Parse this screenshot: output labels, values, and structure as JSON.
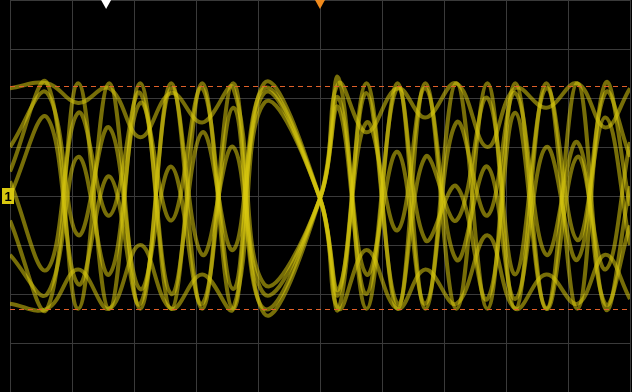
{
  "chart_data": {
    "type": "line",
    "channel_label": "1",
    "channel_offset": 0,
    "color": "#d9c80f",
    "xlim": [
      -5,
      5
    ],
    "ylim": [
      -4,
      4
    ],
    "xticks": [
      -5,
      -4,
      -3,
      -2,
      -1,
      0,
      1,
      2,
      3,
      4,
      5
    ],
    "yticks": [
      -4,
      -3,
      -2,
      -1,
      0,
      1,
      2,
      3,
      4
    ],
    "grid": true,
    "tick_labels": false,
    "cursors": [
      2.25,
      -2.3
    ],
    "top_markers": [
      -3.45,
      0
    ],
    "x": [
      -5,
      -4.4,
      -3.9,
      -3.4,
      -2.9,
      -2.4,
      -1.9,
      -1.4,
      -0.9,
      0,
      0.3,
      0.75,
      1.25,
      1.7,
      2.2,
      2.7,
      3.15,
      3.65,
      4.15,
      4.6,
      5
    ],
    "series": [
      {
        "values": [
          0.5,
          2.3,
          -2.3,
          2.3,
          -2.3,
          2.3,
          -2.3,
          2.3,
          -2.4,
          -0.05,
          2.4,
          -2.3,
          2.3,
          -2.3,
          2.3,
          -2.3,
          2.3,
          -2.3,
          2.3,
          -2.3,
          0.2
        ]
      },
      {
        "values": [
          -0.5,
          -2.3,
          2.3,
          -2.3,
          2.3,
          -2.3,
          2.3,
          -2.3,
          2.3,
          -0.05,
          -2.3,
          2.3,
          -2.3,
          2.3,
          -2.3,
          2.3,
          -2.3,
          2.3,
          -2.3,
          2.3,
          -0.2
        ]
      },
      {
        "values": [
          2.2,
          2.3,
          1.9,
          2.2,
          1.2,
          2.1,
          1.5,
          2.2,
          -1.8,
          -0.05,
          2.3,
          1.3,
          2.2,
          1.6,
          2.3,
          1.0,
          2.2,
          1.8,
          2.3,
          1.4,
          2.2
        ]
      },
      {
        "values": [
          -2.2,
          -2.3,
          -1.5,
          -2.3,
          -1.0,
          -2.3,
          -1.6,
          -2.3,
          1.9,
          -0.05,
          -2.3,
          -1.1,
          -2.3,
          -1.5,
          -2.2,
          -0.8,
          -2.3,
          -1.6,
          -2.2,
          -1.2,
          -2.1
        ]
      },
      {
        "values": [
          1.0,
          2.1,
          -0.8,
          1.4,
          -1.9,
          0.6,
          -2.2,
          1.8,
          -2.0,
          -0.05,
          2.0,
          -1.6,
          0.9,
          -2.2,
          1.5,
          -0.4,
          2.1,
          -1.2,
          1.1,
          -2.2,
          -0.6
        ]
      },
      {
        "values": [
          -1.2,
          -2.0,
          0.8,
          -1.6,
          1.9,
          -0.5,
          2.2,
          -1.9,
          2.1,
          -0.05,
          -1.9,
          1.5,
          -0.7,
          2.2,
          -1.3,
          0.6,
          -2.1,
          1.0,
          -1.3,
          2.1,
          0.8
        ]
      },
      {
        "values": [
          0,
          1.6,
          -1.8,
          0.4,
          -2.2,
          2.2,
          -1.2,
          1.0,
          -2.3,
          -0.05,
          1.8,
          -2.0,
          2.2,
          -0.9,
          0.2,
          -2.1,
          1.7,
          -2.3,
          0.8,
          -1.5,
          1.1
        ]
      },
      {
        "values": [
          0.3,
          -1.5,
          1.7,
          -0.4,
          2.1,
          -2.0,
          1.3,
          -1.1,
          2.2,
          -0.05,
          -2.0,
          2.1,
          -2.2,
          0.8,
          -0.5,
          2.0,
          -1.6,
          2.2,
          -0.9,
          1.6,
          -1.0
        ]
      }
    ]
  }
}
